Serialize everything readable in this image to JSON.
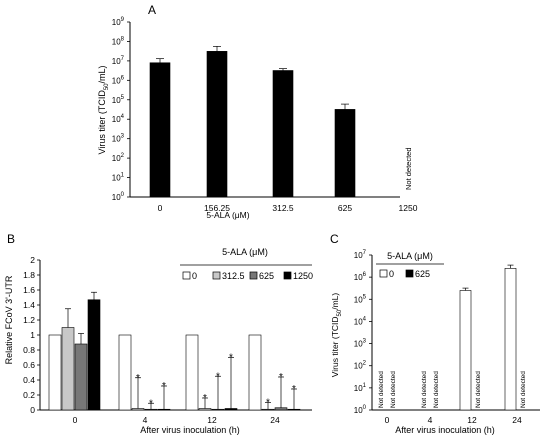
{
  "panel_labels": {
    "a": "A",
    "b": "B",
    "c": "C"
  },
  "colors": {
    "ink": "#000000",
    "bar_0": "#ffffff",
    "bar_312_5": "#c8c8c8",
    "bar_625": "#777777",
    "bar_1250": "#000000"
  },
  "chart_data": [
    {
      "panel": "A",
      "type": "bar",
      "xlabel": "5-ALA (μM)",
      "ylabel": "Virus titer (TCID50/mL)",
      "ylabel_base": "Virus titer (TCID",
      "ylabel_sub": "50",
      "ylabel_end": "/mL)",
      "yscale": "log",
      "ylim": [
        1,
        1000000000
      ],
      "yticks": [
        {
          "exp": 0,
          "base": "10",
          "sup": "0"
        },
        {
          "exp": 1,
          "base": "10",
          "sup": "1"
        },
        {
          "exp": 2,
          "base": "10",
          "sup": "2"
        },
        {
          "exp": 3,
          "base": "10",
          "sup": "3"
        },
        {
          "exp": 4,
          "base": "10",
          "sup": "4"
        },
        {
          "exp": 5,
          "base": "10",
          "sup": "5"
        },
        {
          "exp": 6,
          "base": "10",
          "sup": "6"
        },
        {
          "exp": 7,
          "base": "10",
          "sup": "7"
        },
        {
          "exp": 8,
          "base": "10",
          "sup": "8"
        },
        {
          "exp": 9,
          "base": "10",
          "sup": "9"
        }
      ],
      "categories": [
        "0",
        "156.25",
        "312.5",
        "625",
        "1250"
      ],
      "values": [
        8000000,
        31000000,
        3200000,
        32000,
        null
      ],
      "errors_upper": [
        13000000,
        56000000,
        4000000,
        60000,
        null
      ],
      "not_detected_label": "Not detected",
      "bar_color": "#000000"
    },
    {
      "panel": "B",
      "type": "bar",
      "xlabel": "After virus inoculation (h)",
      "ylabel": "Relative FCoV 3'-UTR",
      "ylim": [
        0,
        2
      ],
      "yticks": [
        "0",
        "0.2",
        "0.4",
        "0.6",
        "0.8",
        "1",
        "1.2",
        "1.4",
        "1.6",
        "1.8",
        "2"
      ],
      "categories": [
        "0",
        "4",
        "12",
        "24"
      ],
      "legend_title": "5-ALA (μM)",
      "series": [
        {
          "name": "0",
          "color": "#ffffff",
          "values": [
            1.0,
            1.0,
            1.0,
            1.0
          ],
          "errors_upper": [
            1.0,
            1.0,
            1.0,
            1.0
          ],
          "significant": [
            false,
            false,
            false,
            false
          ]
        },
        {
          "name": "312.5",
          "color": "#c8c8c8",
          "values": [
            1.1,
            0.02,
            0.02,
            0.01
          ],
          "errors_upper": [
            1.35,
            0.43,
            0.16,
            0.1
          ],
          "significant": [
            false,
            true,
            true,
            true
          ]
        },
        {
          "name": "625",
          "color": "#777777",
          "values": [
            0.88,
            0.01,
            0.01,
            0.03
          ],
          "errors_upper": [
            1.02,
            0.09,
            0.45,
            0.44
          ],
          "significant": [
            false,
            true,
            true,
            true
          ]
        },
        {
          "name": "1250",
          "color": "#000000",
          "values": [
            1.47,
            0.01,
            0.02,
            0.01
          ],
          "errors_upper": [
            1.57,
            0.32,
            0.7,
            0.28
          ],
          "significant": [
            false,
            true,
            true,
            true
          ]
        }
      ],
      "significance_marker": "*"
    },
    {
      "panel": "C",
      "type": "bar",
      "xlabel": "After virus inoculation (h)",
      "ylabel": "Virus titer (TCID50/mL)",
      "ylabel_base": "Virus titer (TCID",
      "ylabel_sub": "50",
      "ylabel_end": "/mL)",
      "yscale": "log",
      "ylim": [
        1,
        10000000
      ],
      "yticks": [
        {
          "exp": 0,
          "base": "10",
          "sup": "0"
        },
        {
          "exp": 1,
          "base": "10",
          "sup": "1"
        },
        {
          "exp": 2,
          "base": "10",
          "sup": "2"
        },
        {
          "exp": 3,
          "base": "10",
          "sup": "3"
        },
        {
          "exp": 4,
          "base": "10",
          "sup": "4"
        },
        {
          "exp": 5,
          "base": "10",
          "sup": "5"
        },
        {
          "exp": 6,
          "base": "10",
          "sup": "6"
        },
        {
          "exp": 7,
          "base": "10",
          "sup": "7"
        }
      ],
      "categories": [
        "0",
        "4",
        "12",
        "24"
      ],
      "legend_title": "5-ALA (μM)",
      "series": [
        {
          "name": "0",
          "color": "#ffffff",
          "values": [
            null,
            null,
            250000,
            2500000
          ],
          "errors_upper": [
            null,
            null,
            320000,
            3500000
          ]
        },
        {
          "name": "625",
          "color": "#000000",
          "values": [
            null,
            null,
            null,
            null
          ],
          "errors_upper": [
            null,
            null,
            null,
            null
          ]
        }
      ],
      "not_detected_label": "Not detected"
    }
  ]
}
